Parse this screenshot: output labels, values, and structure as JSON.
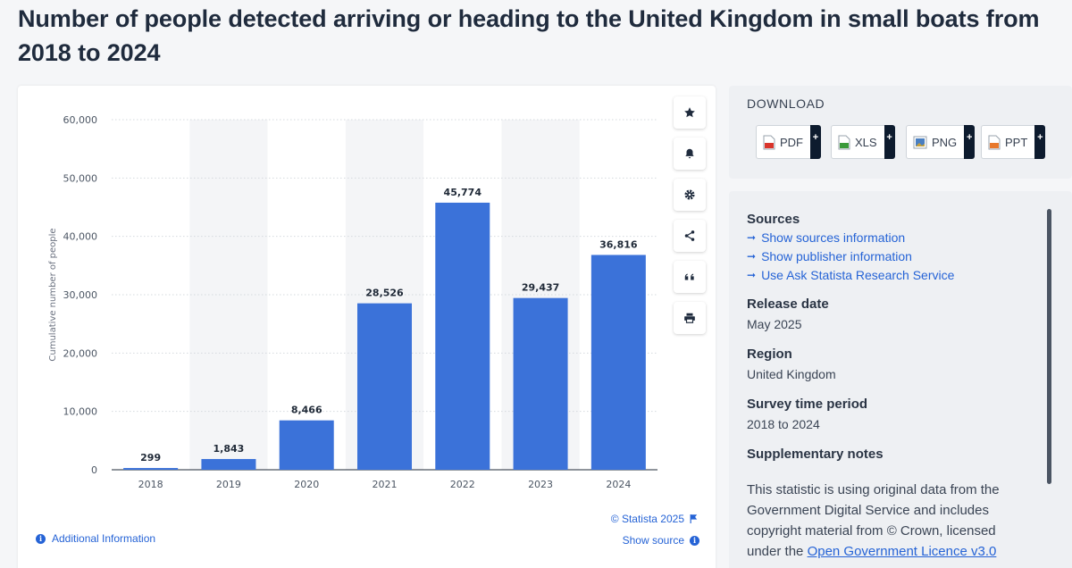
{
  "title": "Number of people detected arriving or heading to the United Kingdom in small boats from 2018 to 2024",
  "chart_data": {
    "type": "bar",
    "categories": [
      "2018",
      "2019",
      "2020",
      "2021",
      "2022",
      "2023",
      "2024"
    ],
    "values": [
      299,
      1843,
      8466,
      28526,
      45774,
      29437,
      36816
    ],
    "value_labels": [
      "299",
      "1,843",
      "8,466",
      "28,526",
      "45,774",
      "29,437",
      "36,816"
    ],
    "ylabel": "Cumulative number of people",
    "xlabel": "",
    "ylim": [
      0,
      60000
    ],
    "yticks": [
      0,
      10000,
      20000,
      30000,
      40000,
      50000,
      60000
    ],
    "ytick_labels": [
      "0",
      "10,000",
      "20,000",
      "30,000",
      "40,000",
      "50,000",
      "60,000"
    ],
    "bar_color": "#3b72d9",
    "grid": true
  },
  "toolbar": {
    "icons": [
      "star-icon",
      "bell-icon",
      "gear-icon",
      "share-icon",
      "quote-icon",
      "print-icon"
    ]
  },
  "chart_footer": {
    "credit": "© Statista 2025",
    "show_source": "Show source",
    "additional_info": "Additional Information"
  },
  "download": {
    "title": "DOWNLOAD",
    "buttons": [
      {
        "label": "PDF",
        "plus": "+",
        "icon_color": "#d9342b"
      },
      {
        "label": "XLS",
        "plus": "+",
        "icon_color": "#3a9a3a"
      },
      {
        "label": "PNG",
        "plus": "+",
        "icon_color": "#4a7fc1"
      },
      {
        "label": "PPT",
        "plus": "+",
        "icon_color": "#e8782b"
      }
    ]
  },
  "info": {
    "sources_heading": "Sources",
    "links": [
      "Show sources information",
      "Show publisher information",
      "Use Ask Statista Research Service"
    ],
    "release_heading": "Release date",
    "release_value": "May 2025",
    "region_heading": "Region",
    "region_value": "United Kingdom",
    "survey_heading": "Survey time period",
    "survey_value": "2018 to 2024",
    "notes_heading": "Supplementary notes",
    "notes_text": "This statistic is using original data from the Government Digital Service and includes copyright material from © Crown, licensed under the ",
    "notes_link": "Open Government Licence v3.0"
  },
  "colors": {
    "accent": "#2563d6",
    "bar": "#3b72d9",
    "dark": "#0d1b2e"
  }
}
